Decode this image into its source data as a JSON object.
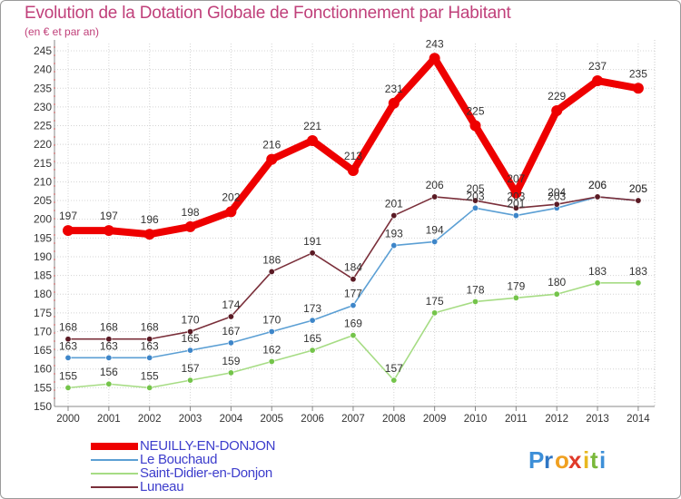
{
  "header": {
    "title": "Evolution de la Dotation Globale de Fonctionnement par Habitant",
    "subtitle": "(en € et par an)"
  },
  "logo": {
    "text": "Proxiti",
    "letters": [
      "P",
      "r",
      "o",
      "x",
      "i",
      "t",
      "i"
    ],
    "colors": [
      "#3d8fd8",
      "#2f76c4",
      "#f0a020",
      "#e03a2a",
      "#e8b820",
      "#7ab83a",
      "#3d8fd8"
    ]
  },
  "chart_data": {
    "type": "line",
    "title": "Evolution de la Dotation Globale de Fonctionnement par Habitant",
    "subtitle": "(en € et par an)",
    "xlabel": "",
    "ylabel": "",
    "x": [
      "2000",
      "2001",
      "2002",
      "2003",
      "2004",
      "2005",
      "2006",
      "2007",
      "2008",
      "2009",
      "2010",
      "2011",
      "2012",
      "2013",
      "2014"
    ],
    "ylim": [
      150,
      245
    ],
    "yticks": [
      150,
      155,
      160,
      165,
      170,
      175,
      180,
      185,
      190,
      195,
      200,
      205,
      210,
      215,
      220,
      225,
      230,
      235,
      240,
      245
    ],
    "grid": true,
    "legend_position": "bottom-left",
    "series": [
      {
        "name": "NEUILLY-EN-DONJON",
        "color": "#ee0000",
        "marker": "#ee0000",
        "values": [
          197,
          197,
          196,
          198,
          202,
          216,
          221,
          213,
          231,
          243,
          225,
          207,
          229,
          237,
          235
        ]
      },
      {
        "name": "Le Bouchaud",
        "color": "#5b9fd4",
        "marker": "#3e86c9",
        "values": [
          163,
          163,
          163,
          165,
          167,
          170,
          173,
          177,
          193,
          194,
          203,
          201,
          203,
          206,
          205
        ]
      },
      {
        "name": "Saint-Didier-en-Donjon",
        "color": "#a6dc84",
        "marker": "#74c44a",
        "values": [
          155,
          156,
          155,
          157,
          159,
          162,
          165,
          169,
          157,
          175,
          178,
          179,
          180,
          183,
          183
        ]
      },
      {
        "name": "Luneau",
        "color": "#7a2f3a",
        "marker": "#5a1a24",
        "values": [
          168,
          168,
          168,
          170,
          174,
          186,
          191,
          184,
          201,
          206,
          205,
          203,
          204,
          206,
          205
        ]
      }
    ]
  }
}
